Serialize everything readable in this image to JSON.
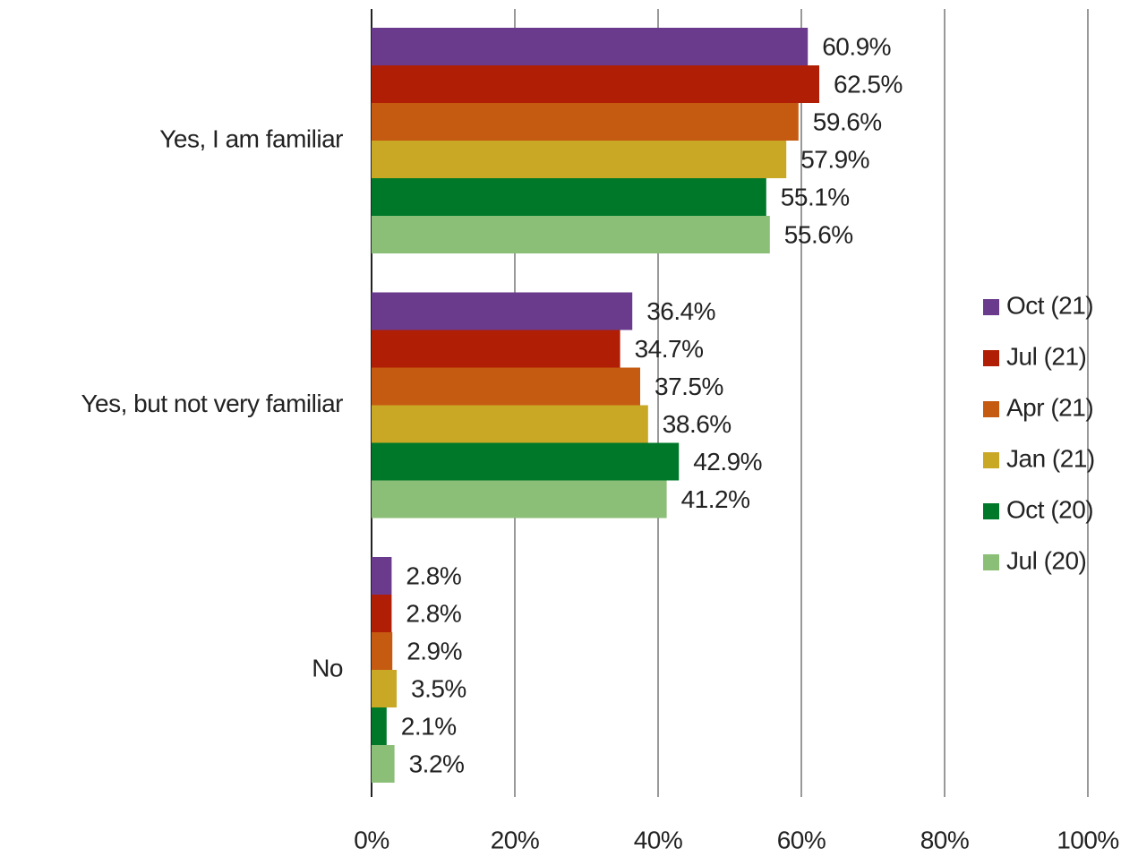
{
  "chart_data": {
    "type": "bar",
    "orientation": "horizontal",
    "categories": [
      "Yes, I am familiar",
      "Yes, but not very familiar",
      "No"
    ],
    "series": [
      {
        "name": "Oct (21)",
        "color": "#6a3a8c",
        "values": [
          60.9,
          36.4,
          2.8
        ],
        "value_labels": [
          "60.9%",
          "36.4%",
          "2.8%"
        ]
      },
      {
        "name": "Jul (21)",
        "color": "#b01e05",
        "values": [
          62.5,
          34.7,
          2.8
        ],
        "value_labels": [
          "62.5%",
          "34.7%",
          "2.8%"
        ]
      },
      {
        "name": "Apr (21)",
        "color": "#c55a11",
        "values": [
          59.6,
          37.5,
          2.9
        ],
        "value_labels": [
          "59.6%",
          "37.5%",
          "2.9%"
        ]
      },
      {
        "name": "Jan (21)",
        "color": "#c9a826",
        "values": [
          57.9,
          38.6,
          3.5
        ],
        "value_labels": [
          "57.9%",
          "38.6%",
          "3.5%"
        ]
      },
      {
        "name": "Oct (20)",
        "color": "#00782a",
        "values": [
          55.1,
          42.9,
          2.1
        ],
        "value_labels": [
          "55.1%",
          "42.9%",
          "2.1%"
        ]
      },
      {
        "name": "Jul (20)",
        "color": "#8bbf77",
        "values": [
          55.6,
          41.2,
          3.2
        ],
        "value_labels": [
          "55.6%",
          "41.2%",
          "3.2%"
        ]
      }
    ],
    "xlim": [
      0,
      100
    ],
    "xticks": [
      {
        "value": 0,
        "label": "0%"
      },
      {
        "value": 20,
        "label": "20%"
      },
      {
        "value": 40,
        "label": "40%"
      },
      {
        "value": 60,
        "label": "60%"
      },
      {
        "value": 80,
        "label": "80%"
      },
      {
        "value": 100,
        "label": "100%"
      }
    ],
    "grid": true,
    "legend": "right"
  }
}
